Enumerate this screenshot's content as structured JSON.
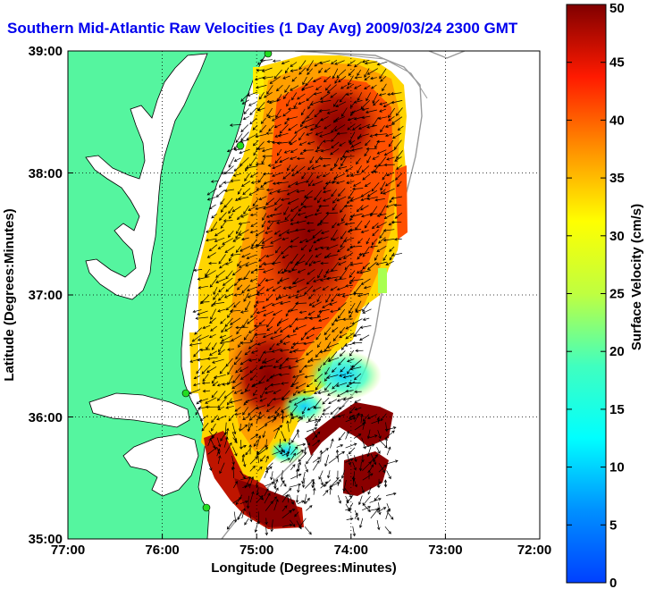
{
  "map": {
    "title": "Southern Mid-Atlantic Raw Velocities (1 Day Avg) 2009/03/24 2300 GMT",
    "xlabel": "Longitude (Degrees:Minutes)",
    "ylabel": "Latitude (Degrees:Minutes)",
    "x_ticks": [
      "77:00",
      "76:00",
      "75:00",
      "74:00",
      "73:00",
      "72:00"
    ],
    "y_ticks": [
      "39:00",
      "38:00",
      "37:00",
      "36:00",
      "35:00"
    ],
    "lon_range": [
      -77,
      -72
    ],
    "lat_range": [
      35,
      39
    ],
    "grid": true,
    "land_color": "#55f59f",
    "water_color": "#ffffff"
  },
  "colorbar": {
    "label": "Surface Velocity (cm/s)",
    "ticks": [
      "50",
      "45",
      "40",
      "35",
      "30",
      "25",
      "20",
      "15",
      "10",
      "5",
      "0"
    ],
    "range": [
      0,
      50
    ],
    "colormap": "jet"
  }
}
